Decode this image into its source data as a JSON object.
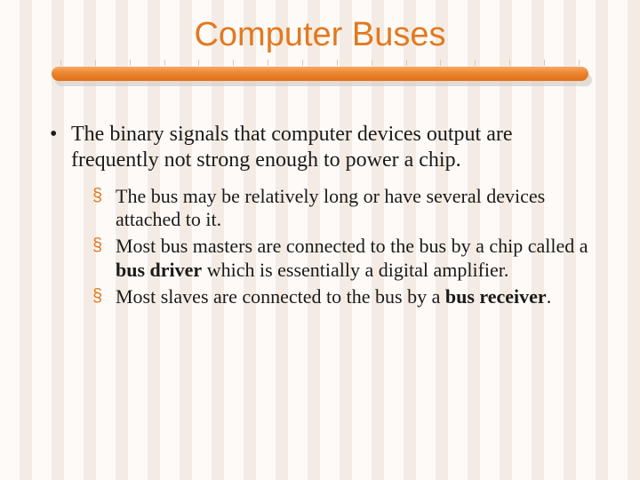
{
  "colors": {
    "accent": "#e2791f",
    "background": "#fdfaf7",
    "stripe": "#f4ece4",
    "divider_gradient_top": "#f8a866",
    "divider_gradient_mid": "#ec8530",
    "divider_gradient_bottom": "#e06f15",
    "shadow": "#d6cfc7",
    "text": "#1a1a1a"
  },
  "typography": {
    "title_fontsize": 38,
    "title_family": "Arial",
    "body_fontsize_l1": 24,
    "body_fontsize_l2": 22,
    "body_family": "Georgia"
  },
  "title": "Computer Buses",
  "bullets": {
    "l1_1": "The binary signals that computer devices output are frequently not strong enough to power a chip.",
    "l2_1": "The bus may be relatively long or have several devices attached to it.",
    "l2_2_a": "Most bus masters are connected to the bus by a chip called a ",
    "l2_2_b": "bus driver",
    "l2_2_c": " which is essentially a digital amplifier.",
    "l2_3_a": "Most slaves are connected to the bus by a ",
    "l2_3_b": "bus receiver",
    "l2_3_c": "."
  },
  "divider": {
    "tick_count": 16
  }
}
